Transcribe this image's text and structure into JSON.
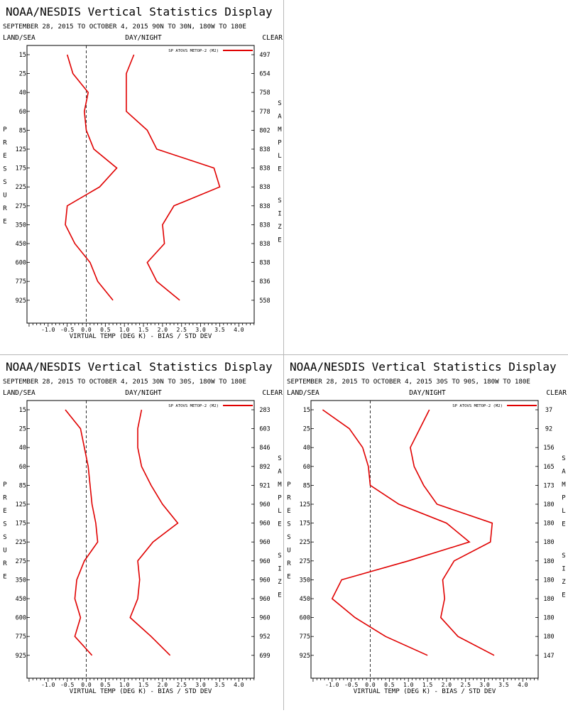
{
  "chart_data": [
    {
      "type": "line",
      "title": "NOAA/NESDIS Vertical Statistics Display",
      "subtitle": "SEPTEMBER 28, 2015 TO OCTOBER 4, 2015 90N TO 30N, 180W TO 180E",
      "corner_left": "LAND/SEA",
      "corner_center": "DAY/NIGHT",
      "corner_right": "CLEAR",
      "xlabel": "VIRTUAL TEMP (DEG K) - BIAS / STD DEV",
      "ylabel": "PRESSURE",
      "ylabel_right": "SAMPLE SIZE",
      "legend": "SP ATOVS METOP-2 (M2)",
      "legend_position": "top-right",
      "line_color": "#e00000",
      "xlim": [
        -1.5,
        4.5
      ],
      "xticks": [
        "-1.0",
        "-0.5",
        "0.0",
        "0.5",
        "1.0",
        "1.5",
        "2.0",
        "2.5",
        "3.0",
        "3.5",
        "4.0"
      ],
      "pressure_levels": [
        "15",
        "25",
        "40",
        "60",
        "85",
        "125",
        "175",
        "225",
        "275",
        "350",
        "450",
        "600",
        "775",
        "925"
      ],
      "sample_size": [
        "497",
        "654",
        "758",
        "778",
        "802",
        "838",
        "838",
        "838",
        "838",
        "838",
        "838",
        "838",
        "836",
        "558"
      ],
      "series": [
        {
          "values": [
            -0.5,
            -0.35,
            0.05,
            -0.05,
            0.0,
            0.2,
            0.8,
            0.35,
            -0.5,
            -0.55,
            -0.3,
            0.1,
            0.3,
            0.7
          ]
        },
        {
          "values": [
            1.25,
            1.05,
            1.05,
            1.05,
            1.6,
            1.85,
            3.35,
            3.5,
            2.3,
            2.0,
            2.05,
            1.6,
            1.85,
            2.45
          ]
        }
      ]
    },
    {
      "empty": true
    },
    {
      "type": "line",
      "title": "NOAA/NESDIS Vertical Statistics Display",
      "subtitle": "SEPTEMBER 28, 2015 TO OCTOBER 4, 2015 30N TO 30S, 180W TO 180E",
      "corner_left": "LAND/SEA",
      "corner_center": "DAY/NIGHT",
      "corner_right": "CLEAR",
      "xlabel": "VIRTUAL TEMP (DEG K) - BIAS / STD DEV",
      "ylabel": "PRESSURE",
      "ylabel_right": "SAMPLE SIZE",
      "legend": "SP ATOVS METOP-2 (M2)",
      "legend_position": "top-right",
      "line_color": "#e00000",
      "xlim": [
        -1.5,
        4.5
      ],
      "xticks": [
        "-1.0",
        "-0.5",
        "0.0",
        "0.5",
        "1.0",
        "1.5",
        "2.0",
        "2.5",
        "3.0",
        "3.5",
        "4.0"
      ],
      "pressure_levels": [
        "15",
        "25",
        "40",
        "60",
        "85",
        "125",
        "175",
        "225",
        "275",
        "350",
        "450",
        "600",
        "775",
        "925"
      ],
      "sample_size": [
        "283",
        "603",
        "846",
        "892",
        "921",
        "960",
        "960",
        "960",
        "960",
        "960",
        "960",
        "960",
        "952",
        "699"
      ],
      "series": [
        {
          "values": [
            -0.55,
            -0.15,
            -0.05,
            0.05,
            0.1,
            0.15,
            0.25,
            0.3,
            -0.05,
            -0.25,
            -0.3,
            -0.15,
            -0.3,
            0.15
          ]
        },
        {
          "values": [
            1.45,
            1.35,
            1.35,
            1.45,
            1.7,
            2.0,
            2.4,
            1.75,
            1.35,
            1.4,
            1.35,
            1.15,
            1.7,
            2.2
          ]
        }
      ]
    },
    {
      "type": "line",
      "title": "NOAA/NESDIS Vertical Statistics Display",
      "subtitle": "SEPTEMBER 28, 2015 TO OCTOBER 4, 2015 30S TO 90S, 180W TO 180E",
      "corner_left": "LAND/SEA",
      "corner_center": "DAY/NIGHT",
      "corner_right": "CLEAR",
      "xlabel": "VIRTUAL TEMP (DEG K) - BIAS / STD DEV",
      "ylabel": "PRESSURE",
      "ylabel_right": "SAMPLE SIZE",
      "legend": "SP ATOVS METOP-2 (M2)",
      "legend_position": "top-right",
      "line_color": "#e00000",
      "xlim": [
        -1.5,
        4.5
      ],
      "xticks": [
        "-1.0",
        "-0.5",
        "0.0",
        "0.5",
        "1.0",
        "1.5",
        "2.0",
        "2.5",
        "3.0",
        "3.5",
        "4.0"
      ],
      "pressure_levels": [
        "15",
        "25",
        "40",
        "60",
        "85",
        "125",
        "175",
        "225",
        "275",
        "350",
        "450",
        "600",
        "775",
        "925"
      ],
      "sample_size": [
        "37",
        "92",
        "156",
        "165",
        "173",
        "180",
        "180",
        "180",
        "180",
        "180",
        "180",
        "180",
        "180",
        "147"
      ],
      "series": [
        {
          "values": [
            -1.25,
            -0.55,
            -0.2,
            -0.05,
            0.0,
            0.75,
            2.0,
            2.6,
            1.0,
            -0.75,
            -1.0,
            -0.4,
            0.4,
            1.5
          ]
        },
        {
          "values": [
            1.55,
            1.3,
            1.05,
            1.15,
            1.4,
            1.75,
            3.2,
            3.15,
            2.2,
            1.9,
            1.95,
            1.85,
            2.3,
            3.25
          ]
        }
      ]
    }
  ]
}
